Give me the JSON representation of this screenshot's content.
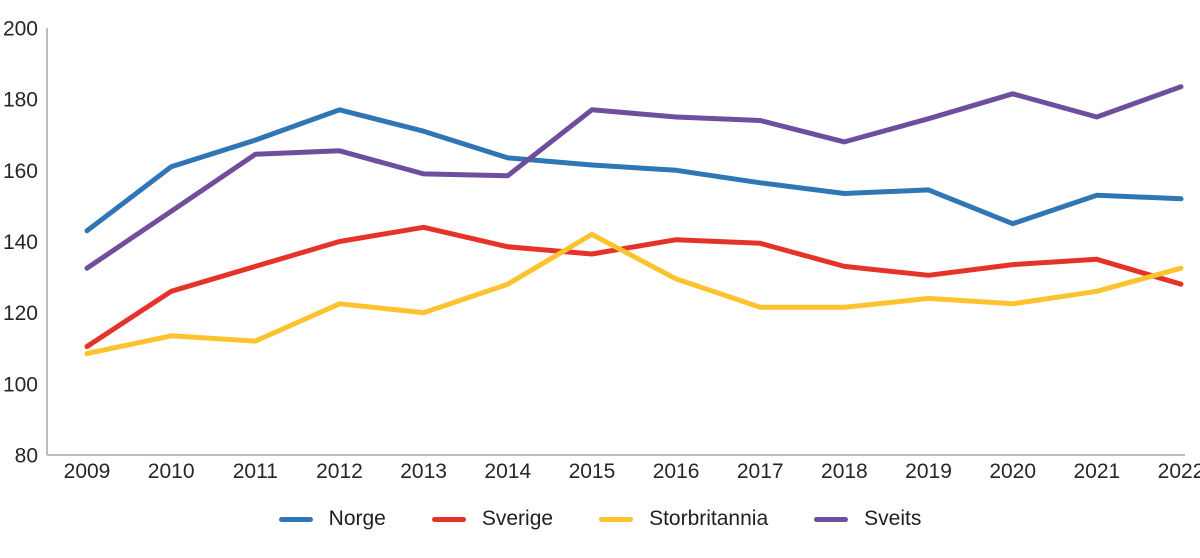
{
  "chart_data": {
    "type": "line",
    "title": "",
    "xlabel": "",
    "ylabel": "",
    "x": [
      "2009",
      "2010",
      "2011",
      "2012",
      "2013",
      "2014",
      "2015",
      "2016",
      "2017",
      "2018",
      "2019",
      "2020",
      "2021",
      "2022"
    ],
    "series": [
      {
        "name": "Norge",
        "color": "#3076B5",
        "values": [
          143,
          161,
          168.5,
          177,
          171,
          163.5,
          161.5,
          160,
          156.5,
          153.5,
          154.5,
          145,
          153,
          152
        ]
      },
      {
        "name": "Sverige",
        "color": "#E63329",
        "values": [
          110.5,
          126,
          133,
          140,
          144,
          138.5,
          136.5,
          140.5,
          139.5,
          133,
          130.5,
          133.5,
          135,
          128
        ]
      },
      {
        "name": "Storbritannia",
        "color": "#FDC32F",
        "values": [
          108.5,
          113.5,
          112,
          122.5,
          120,
          128,
          142,
          129.5,
          121.5,
          121.5,
          124,
          122.5,
          126,
          132.5
        ]
      },
      {
        "name": "Sveits",
        "color": "#6F4E9E",
        "values": [
          132.5,
          148.5,
          164.5,
          165.5,
          159,
          158.5,
          177,
          175,
          174,
          168,
          174.5,
          181.5,
          175,
          183.5
        ]
      }
    ],
    "ylim": [
      80,
      200
    ],
    "yticks": [
      80,
      100,
      120,
      140,
      160,
      180,
      200
    ],
    "grid": false,
    "legend_position": "bottom",
    "axis_color": "#A6A6A6",
    "text_color": "#262626",
    "line_width": 5
  }
}
